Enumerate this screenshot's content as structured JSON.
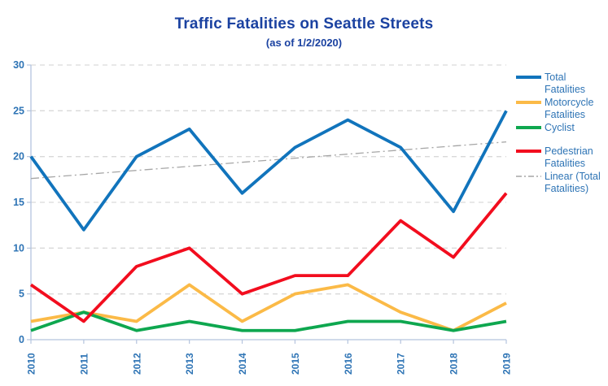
{
  "title": "Traffic Fatalities on Seattle Streets",
  "subtitle": "(as of 1/2/2020)",
  "colors": {
    "title": "#1b42a1",
    "axis_text": "#2e74b5",
    "gridline": "#d9d9d9",
    "axis_line": "#b4c4de",
    "total": "#1174bc",
    "motorcycle": "#fbba47",
    "cyclist": "#0ea74f",
    "pedestrian": "#f20d1e",
    "trend": "#a6a6a6"
  },
  "chart_data": {
    "type": "line",
    "x": [
      "2010",
      "2011",
      "2012",
      "2013",
      "2014",
      "2015",
      "2016",
      "2017",
      "2018",
      "2019"
    ],
    "series": [
      {
        "name": "Total Fatalities",
        "color_key": "total",
        "values": [
          20,
          12,
          20,
          23,
          16,
          21,
          24,
          21,
          14,
          25
        ]
      },
      {
        "name": "Motorcycle Fatalities",
        "color_key": "motorcycle",
        "values": [
          2,
          3,
          2,
          6,
          2,
          5,
          6,
          3,
          1,
          4
        ]
      },
      {
        "name": "Cyclist",
        "color_key": "cyclist",
        "values": [
          1,
          3,
          1,
          2,
          1,
          1,
          2,
          2,
          1,
          2
        ]
      },
      {
        "name": "Pedestrian Fatalities",
        "color_key": "pedestrian",
        "values": [
          6,
          2,
          8,
          10,
          5,
          7,
          7,
          13,
          9,
          16
        ]
      }
    ],
    "trendline": {
      "name": "Linear (Total Fatalities)",
      "of_series": "Total Fatalities",
      "start": 17.6,
      "end": 21.6,
      "style": "dash-dot",
      "color_key": "trend"
    },
    "ylim": [
      0,
      30
    ],
    "yticks": [
      0,
      5,
      10,
      15,
      20,
      25,
      30
    ],
    "grid": "horizontal-dashed",
    "legend_position": "right"
  },
  "legend": {
    "items": [
      {
        "label": "Total Fatalities",
        "color_key": "total",
        "style": "solid",
        "gap_before": false
      },
      {
        "label": "Motorcycle Fatalities",
        "color_key": "motorcycle",
        "style": "solid",
        "gap_before": false
      },
      {
        "label": "Cyclist",
        "color_key": "cyclist",
        "style": "solid",
        "gap_before": false
      },
      {
        "label": "Pedestrian Fatalities",
        "color_key": "pedestrian",
        "style": "solid",
        "gap_before": true
      },
      {
        "label": "Linear (Total Fatalities)",
        "color_key": "trend",
        "style": "dash-dot",
        "gap_before": false
      }
    ]
  }
}
